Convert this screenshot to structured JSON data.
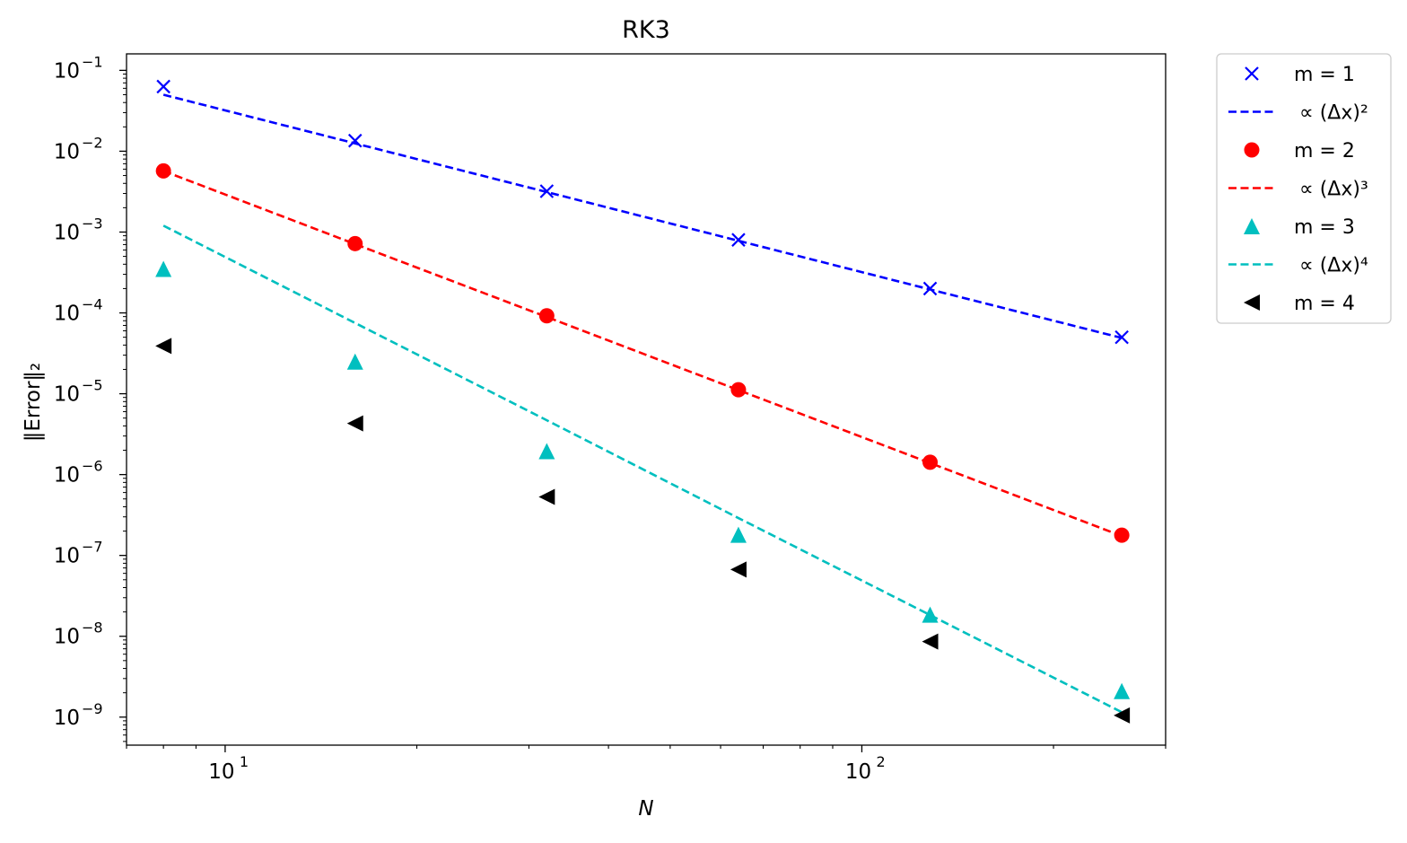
{
  "chart_data": {
    "type": "scatter",
    "title": "RK3",
    "xlabel": "N",
    "ylabel": "‖Error‖₂",
    "xscale": "log",
    "yscale": "log",
    "xlim": [
      7,
      300
    ],
    "ylim": [
      4.5e-10,
      0.16
    ],
    "x_ticks": [
      {
        "value": 10,
        "base": "10",
        "exp": "1"
      },
      {
        "value": 100,
        "base": "10",
        "exp": "2"
      }
    ],
    "y_ticks": [
      {
        "value": 0.1,
        "base": "10",
        "exp": "−1"
      },
      {
        "value": 0.01,
        "base": "10",
        "exp": "−2"
      },
      {
        "value": 0.001,
        "base": "10",
        "exp": "−3"
      },
      {
        "value": 0.0001,
        "base": "10",
        "exp": "−4"
      },
      {
        "value": 1e-05,
        "base": "10",
        "exp": "−5"
      },
      {
        "value": 1e-06,
        "base": "10",
        "exp": "−6"
      },
      {
        "value": 1e-07,
        "base": "10",
        "exp": "−7"
      },
      {
        "value": 1e-08,
        "base": "10",
        "exp": "−8"
      },
      {
        "value": 1e-09,
        "base": "10",
        "exp": "−9"
      }
    ],
    "x": [
      8,
      16,
      32,
      64,
      128,
      256
    ],
    "series": [
      {
        "label": "m = 1",
        "kind": "points",
        "marker": "x",
        "color": "#0000ff",
        "values": [
          0.063,
          0.0135,
          0.0032,
          0.0008,
          0.0002,
          5e-05
        ]
      },
      {
        "label": "∝ (Δx)²",
        "kind": "line",
        "color": "#0000ff",
        "values": [
          0.05,
          0.0125,
          0.003125,
          0.00078,
          0.000195,
          4.9e-05
        ]
      },
      {
        "label": "m = 2",
        "kind": "points",
        "marker": "circle",
        "color": "#ff0000",
        "values": [
          0.0057,
          0.00072,
          9.2e-05,
          1.12e-05,
          1.42e-06,
          1.78e-07
        ]
      },
      {
        "label": "∝ (Δx)³",
        "kind": "line",
        "color": "#ff0000",
        "values": [
          0.0057,
          0.00071,
          8.9e-05,
          1.11e-05,
          1.39e-06,
          1.74e-07
        ]
      },
      {
        "label": "m = 3",
        "kind": "points",
        "marker": "triangle-up",
        "color": "#00bfbf",
        "values": [
          0.00035,
          2.5e-05,
          1.95e-06,
          1.8e-07,
          1.85e-08,
          2.1e-09
        ]
      },
      {
        "label": "∝ (Δx)⁴",
        "kind": "line",
        "color": "#00bfbf",
        "values": [
          0.0012,
          7.5e-05,
          4.7e-06,
          2.9e-07,
          1.83e-08,
          1.15e-09
        ]
      },
      {
        "label": "m = 4",
        "kind": "points",
        "marker": "triangle-left",
        "color": "#000000",
        "values": [
          3.9e-05,
          4.3e-06,
          5.3e-07,
          6.7e-08,
          8.6e-09,
          1.05e-09
        ]
      }
    ],
    "legend_position": "outside-right-top"
  }
}
